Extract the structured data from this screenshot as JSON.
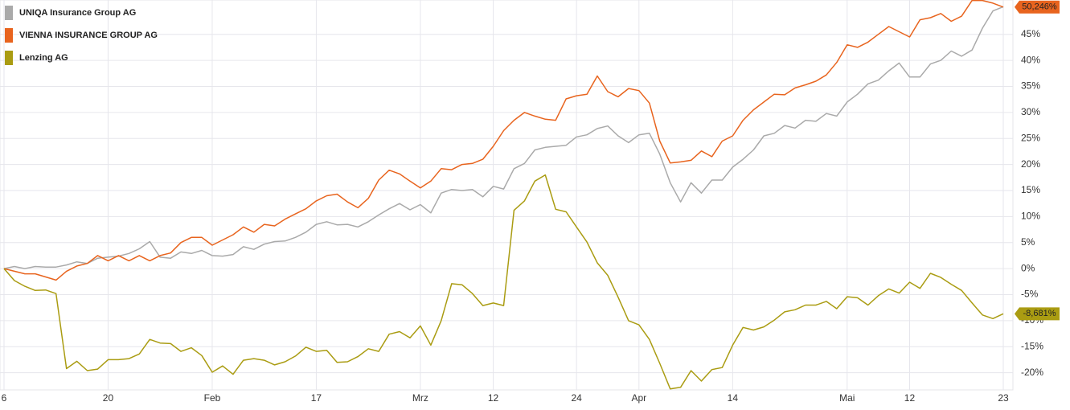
{
  "chart_data": {
    "type": "line",
    "categories": [
      "6",
      null,
      null,
      null,
      null,
      null,
      null,
      null,
      null,
      null,
      "20",
      null,
      null,
      null,
      null,
      null,
      null,
      null,
      null,
      null,
      "Feb",
      null,
      null,
      null,
      null,
      null,
      null,
      null,
      null,
      null,
      "17",
      null,
      null,
      null,
      null,
      null,
      null,
      null,
      null,
      null,
      "Mrz",
      null,
      null,
      null,
      null,
      null,
      null,
      "12",
      null,
      null,
      null,
      null,
      null,
      null,
      null,
      "24",
      null,
      null,
      null,
      null,
      null,
      "Apr",
      null,
      null,
      null,
      null,
      null,
      null,
      null,
      null,
      "14",
      null,
      null,
      null,
      null,
      null,
      null,
      null,
      null,
      null,
      null,
      "Mai",
      null,
      null,
      null,
      null,
      null,
      "12",
      null,
      null,
      null,
      null,
      null,
      null,
      null,
      null,
      "23"
    ],
    "series": [
      {
        "name": "UNIQA Insurance Group AG",
        "color": "#aaaaaa",
        "values": [
          0,
          0.4,
          0,
          0.4,
          0.3,
          0.3,
          0.7,
          1.3,
          1,
          2,
          2.2,
          2.4,
          2.9,
          3.8,
          5.2,
          2.2,
          2,
          3.2,
          2.9,
          3.5,
          2.5,
          2.4,
          2.7,
          4.2,
          3.7,
          4.7,
          5.2,
          5.3,
          6,
          7,
          8.5,
          9,
          8.4,
          8.5,
          8,
          9,
          10.3,
          11.5,
          12.5,
          11.3,
          12.3,
          10.7,
          14.5,
          15.2,
          15,
          15.2,
          13.8,
          15.8,
          15.3,
          19.2,
          20.2,
          22.8,
          23.3,
          23.5,
          23.7,
          25.3,
          25.7,
          26.9,
          27.4,
          25.5,
          24.2,
          25.7,
          26,
          22,
          16.5,
          12.8,
          16.5,
          14.5,
          17,
          17,
          19.5,
          21,
          22.8,
          25.5,
          26,
          27.5,
          27,
          28.5,
          28.3,
          29.8,
          29.3,
          32,
          33.5,
          35.5,
          36.2,
          38,
          39.5,
          36.8,
          36.8,
          39.3,
          40,
          41.8,
          40.8,
          42,
          46.2,
          49.5,
          50.3
        ]
      },
      {
        "name": "VIENNA INSURANCE GROUP AG",
        "color": "#e8641e",
        "values": [
          0,
          -0.5,
          -1,
          -1,
          -1.6,
          -2.2,
          -0.5,
          0.5,
          1,
          2.5,
          1.5,
          2.5,
          1.5,
          2.5,
          1.5,
          2.5,
          3,
          5,
          6,
          6,
          4.5,
          5.5,
          6.5,
          8,
          7,
          8.5,
          8.2,
          9.5,
          10.5,
          11.5,
          13,
          14,
          14.3,
          12.8,
          11.7,
          13.5,
          17,
          18.9,
          18.2,
          16.8,
          15.5,
          16.8,
          19.2,
          19,
          20,
          20.2,
          21,
          23.5,
          26.5,
          28.5,
          30,
          29.3,
          28.7,
          28.5,
          32.6,
          33.2,
          33.5,
          37,
          34,
          33,
          34.6,
          34.2,
          31.8,
          24.5,
          20.3,
          20.5,
          20.8,
          22.6,
          21.5,
          24.5,
          25.5,
          28.5,
          30.5,
          32,
          33.5,
          33.4,
          34.7,
          35.3,
          36,
          37.2,
          39.6,
          43,
          42.5,
          43.5,
          45,
          46.5,
          45.5,
          44.5,
          47.8,
          48.2,
          49,
          47.5,
          48.5,
          51.5,
          51.5,
          51,
          50.246
        ],
        "value_labels": [
          null,
          null,
          null,
          null,
          null,
          null,
          null,
          null,
          null,
          null,
          null,
          null,
          null,
          null,
          null,
          null,
          null,
          null,
          null,
          null,
          null,
          null,
          null,
          null,
          null,
          null,
          null,
          null,
          null,
          null,
          null,
          null,
          null,
          null,
          null,
          null,
          null,
          null,
          null,
          null,
          null,
          null,
          null,
          null,
          null,
          null,
          null,
          null,
          null,
          null,
          null,
          null,
          null,
          null,
          null,
          null,
          null,
          null,
          null,
          null,
          null,
          null,
          null,
          null,
          null,
          null,
          null,
          null,
          null,
          null,
          null,
          null,
          null,
          null,
          null,
          null,
          null,
          null,
          null,
          null,
          null,
          null,
          null,
          null,
          null,
          null,
          null,
          null,
          null,
          null,
          null,
          null,
          null,
          null,
          null,
          null,
          "50,246%"
        ]
      },
      {
        "name": "Lenzing AG",
        "color": "#aa9c12",
        "values": [
          0,
          -2.3,
          -3.4,
          -4.2,
          -4.1,
          -4.8,
          -19.2,
          -17.8,
          -19.6,
          -19.3,
          -17.5,
          -17.5,
          -17.3,
          -16.4,
          -13.6,
          -14.3,
          -14.4,
          -15.9,
          -15.2,
          -16.7,
          -19.9,
          -18.7,
          -20.3,
          -17.6,
          -17.3,
          -17.6,
          -18.5,
          -17.9,
          -16.8,
          -15.1,
          -15.9,
          -15.7,
          -18,
          -17.9,
          -16.9,
          -15.4,
          -15.9,
          -12.6,
          -12.1,
          -13.3,
          -11,
          -14.7,
          -10,
          -2.9,
          -3.1,
          -4.8,
          -7.1,
          -6.6,
          -7.1,
          11.2,
          13,
          16.8,
          18,
          11.4,
          10.9,
          8,
          5.1,
          1.1,
          -1.3,
          -5.5,
          -10,
          -10.8,
          -13.6,
          -18.2,
          -23.1,
          -22.8,
          -19.6,
          -21.6,
          -19.4,
          -19,
          -14.7,
          -11.3,
          -11.8,
          -11.2,
          -9.9,
          -8.3,
          -7.9,
          -7,
          -7,
          -6.3,
          -7.7,
          -5.4,
          -5.6,
          -7,
          -5.2,
          -3.9,
          -4.7,
          -2.6,
          -3.8,
          -0.9,
          -1.7,
          -3,
          -4.2,
          -6.6,
          -8.9,
          -9.6,
          -8.681
        ],
        "value_labels": [
          null,
          null,
          null,
          null,
          null,
          null,
          null,
          null,
          null,
          null,
          null,
          null,
          null,
          null,
          null,
          null,
          null,
          null,
          null,
          null,
          null,
          null,
          null,
          null,
          null,
          null,
          null,
          null,
          null,
          null,
          null,
          null,
          null,
          null,
          null,
          null,
          null,
          null,
          null,
          null,
          null,
          null,
          null,
          null,
          null,
          null,
          null,
          null,
          null,
          null,
          null,
          null,
          null,
          null,
          null,
          null,
          null,
          null,
          null,
          null,
          null,
          null,
          null,
          null,
          null,
          null,
          null,
          null,
          null,
          null,
          null,
          null,
          null,
          null,
          null,
          null,
          null,
          null,
          null,
          null,
          null,
          null,
          null,
          null,
          null,
          null,
          null,
          null,
          null,
          null,
          null,
          null,
          null,
          null,
          null,
          null,
          "-8,681%"
        ]
      }
    ],
    "ylim": [
      -23.3,
      51.6
    ],
    "yticks": [
      {
        "value": -20,
        "label": "-20%"
      },
      {
        "value": -15,
        "label": "-15%"
      },
      {
        "value": -10,
        "label": "-10%"
      },
      {
        "value": -5,
        "label": "-5%"
      },
      {
        "value": 0,
        "label": "0%"
      },
      {
        "value": 5,
        "label": "5%"
      },
      {
        "value": 10,
        "label": "10%"
      },
      {
        "value": 15,
        "label": "15%"
      },
      {
        "value": 20,
        "label": "20%"
      },
      {
        "value": 25,
        "label": "25%"
      },
      {
        "value": 30,
        "label": "30%"
      },
      {
        "value": 35,
        "label": "35%"
      },
      {
        "value": 40,
        "label": "40%"
      },
      {
        "value": 45,
        "label": "45%"
      }
    ],
    "grid": true,
    "legend": "top-left"
  }
}
